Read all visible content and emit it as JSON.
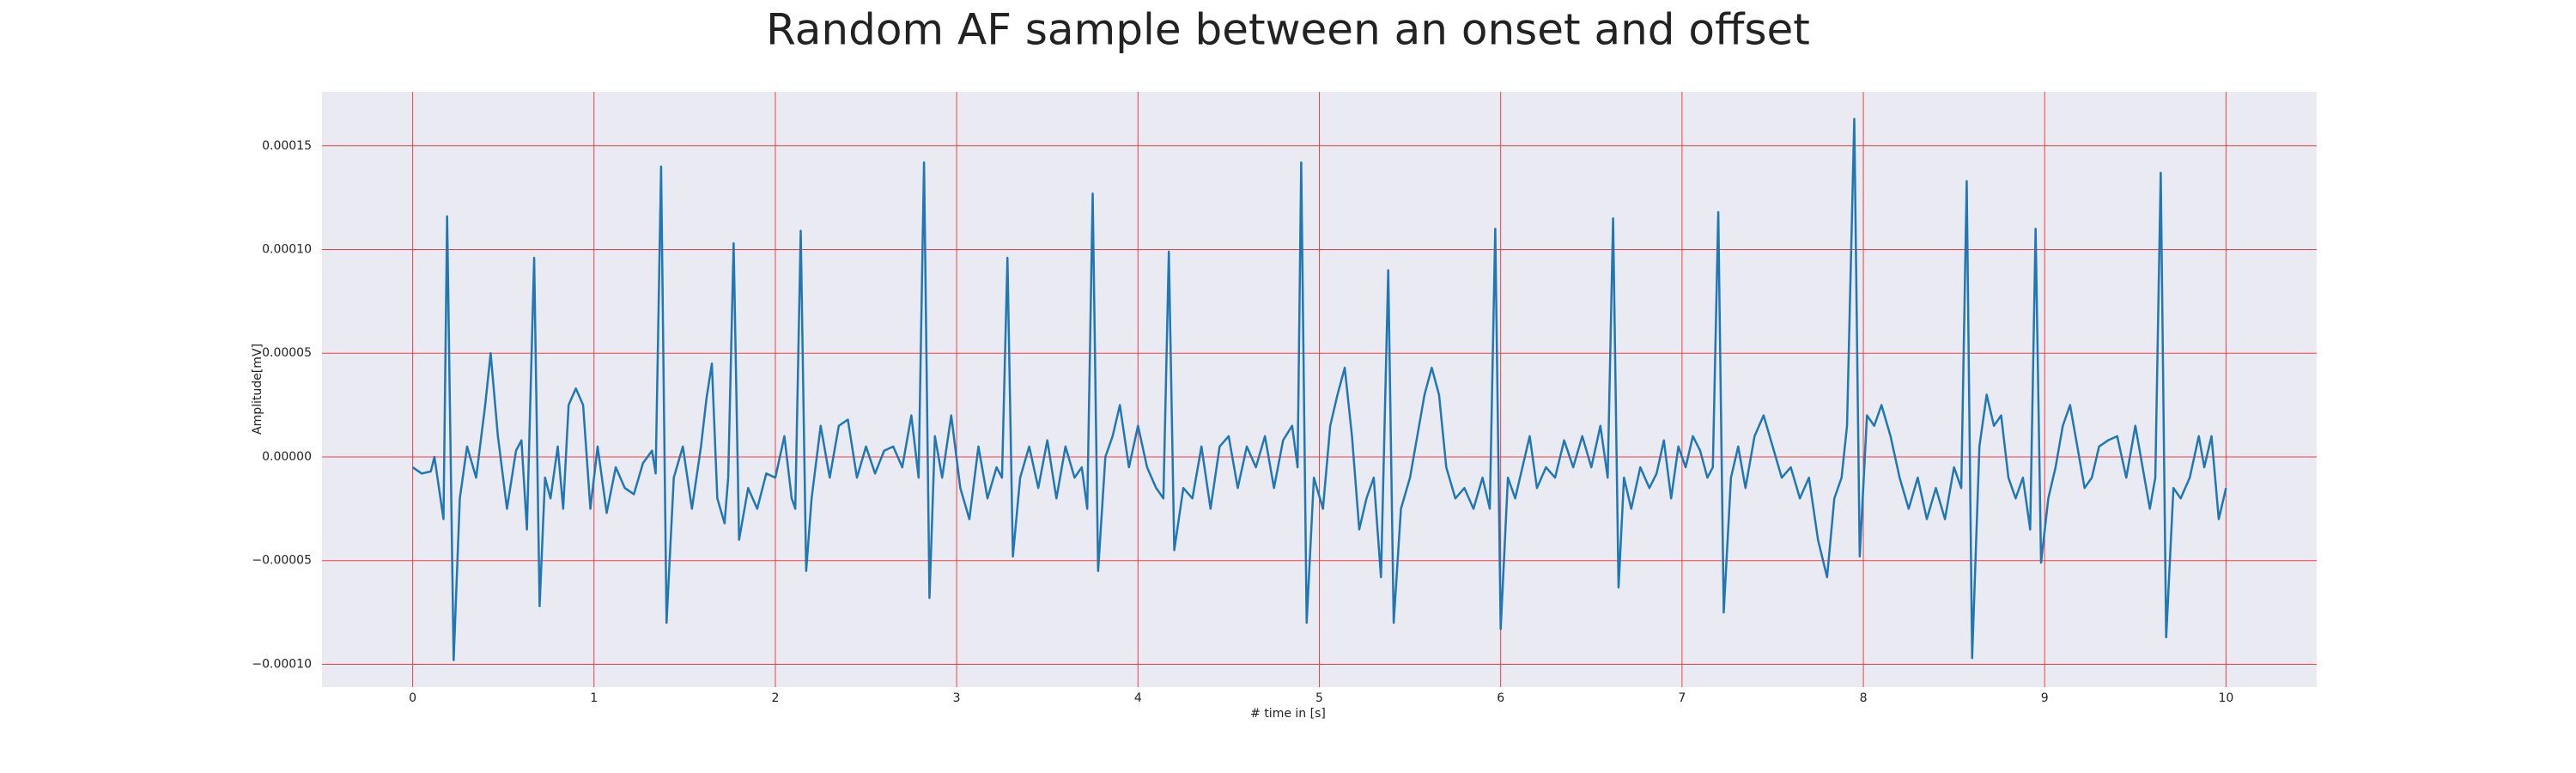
{
  "chart_data": {
    "type": "line",
    "title": "Random AF sample between an onset and offset",
    "xlabel": "# time in [s]",
    "ylabel": "Amplitude[mV]",
    "xlim": [
      -0.5,
      10.5
    ],
    "ylim": [
      -0.000111,
      0.000176
    ],
    "xticks": [
      0,
      1,
      2,
      3,
      4,
      5,
      6,
      7,
      8,
      9,
      10
    ],
    "yticks": [
      {
        "value": -0.0001,
        "label": "−0.00010"
      },
      {
        "value": -5e-05,
        "label": "−0.00005"
      },
      {
        "value": 0,
        "label": "0.00000"
      },
      {
        "value": 5e-05,
        "label": "0.00005"
      },
      {
        "value": 0.0001,
        "label": "0.00010"
      },
      {
        "value": 0.00015,
        "label": "0.00015"
      }
    ],
    "grid": true,
    "grid_color": "#f04040",
    "background": "#eaeaf2",
    "series": [
      {
        "color": "#1f77b4",
        "x": [
          0.0,
          0.05,
          0.1,
          0.12,
          0.15,
          0.17,
          0.19,
          0.226,
          0.26,
          0.3,
          0.35,
          0.4,
          0.43,
          0.47,
          0.52,
          0.57,
          0.6,
          0.63,
          0.67,
          0.7,
          0.73,
          0.76,
          0.8,
          0.83,
          0.86,
          0.9,
          0.94,
          0.98,
          1.02,
          1.07,
          1.12,
          1.17,
          1.22,
          1.27,
          1.32,
          1.34,
          1.37,
          1.4,
          1.44,
          1.49,
          1.54,
          1.59,
          1.62,
          1.65,
          1.68,
          1.72,
          1.74,
          1.77,
          1.8,
          1.85,
          1.9,
          1.95,
          2.0,
          2.05,
          2.09,
          2.11,
          2.14,
          2.17,
          2.2,
          2.25,
          2.3,
          2.35,
          2.4,
          2.45,
          2.5,
          2.55,
          2.6,
          2.65,
          2.7,
          2.75,
          2.79,
          2.82,
          2.85,
          2.88,
          2.92,
          2.97,
          3.02,
          3.07,
          3.12,
          3.17,
          3.22,
          3.25,
          3.28,
          3.31,
          3.35,
          3.4,
          3.45,
          3.5,
          3.55,
          3.6,
          3.65,
          3.69,
          3.72,
          3.75,
          3.78,
          3.82,
          3.86,
          3.9,
          3.95,
          4.0,
          4.05,
          4.1,
          4.14,
          4.17,
          4.2,
          4.25,
          4.3,
          4.35,
          4.4,
          4.45,
          4.5,
          4.55,
          4.6,
          4.65,
          4.7,
          4.75,
          4.8,
          4.85,
          4.88,
          4.9,
          4.93,
          4.97,
          5.02,
          5.06,
          5.1,
          5.14,
          5.18,
          5.22,
          5.26,
          5.3,
          5.34,
          5.38,
          5.41,
          5.45,
          5.5,
          5.54,
          5.58,
          5.62,
          5.66,
          5.7,
          5.75,
          5.8,
          5.85,
          5.9,
          5.94,
          5.97,
          6.0,
          6.04,
          6.08,
          6.12,
          6.16,
          6.2,
          6.25,
          6.3,
          6.35,
          6.4,
          6.45,
          6.5,
          6.55,
          6.59,
          6.62,
          6.65,
          6.68,
          6.72,
          6.77,
          6.82,
          6.86,
          6.9,
          6.94,
          6.98,
          7.02,
          7.06,
          7.1,
          7.14,
          7.17,
          7.2,
          7.23,
          7.27,
          7.31,
          7.35,
          7.4,
          7.45,
          7.5,
          7.55,
          7.6,
          7.65,
          7.7,
          7.75,
          7.8,
          7.84,
          7.88,
          7.91,
          7.95,
          7.98,
          8.02,
          8.06,
          8.1,
          8.15,
          8.2,
          8.25,
          8.3,
          8.35,
          8.4,
          8.45,
          8.5,
          8.54,
          8.57,
          8.6,
          8.64,
          8.68,
          8.72,
          8.76,
          8.8,
          8.84,
          8.88,
          8.92,
          8.95,
          8.98,
          9.02,
          9.06,
          9.1,
          9.14,
          9.18,
          9.22,
          9.26,
          9.3,
          9.35,
          9.4,
          9.45,
          9.5,
          9.55,
          9.58,
          9.61,
          9.64,
          9.67,
          9.71,
          9.75,
          9.8,
          9.85,
          9.88,
          9.92,
          9.96,
          10.0
        ],
        "values": [
          -5e-06,
          -8e-06,
          -7e-06,
          0.0,
          -1.8e-05,
          -3e-05,
          0.000116,
          -9.8e-05,
          -2e-05,
          5e-06,
          -1e-05,
          2.5e-05,
          5e-05,
          1e-05,
          -2.5e-05,
          3e-06,
          8e-06,
          -3.5e-05,
          9.6e-05,
          -7.2e-05,
          -1e-05,
          -2e-05,
          5e-06,
          -2.5e-05,
          2.5e-05,
          3.3e-05,
          2.5e-05,
          -2.5e-05,
          5e-06,
          -2.7e-05,
          -5e-06,
          -1.5e-05,
          -1.8e-05,
          -3e-06,
          3e-06,
          -8e-06,
          0.00014,
          -8e-05,
          -1e-05,
          5e-06,
          -2.5e-05,
          5e-06,
          2.8e-05,
          4.5e-05,
          -2e-05,
          -3.2e-05,
          -1e-05,
          0.000103,
          -4e-05,
          -1.5e-05,
          -2.5e-05,
          -8e-06,
          -1e-05,
          1e-05,
          -2e-05,
          -2.5e-05,
          0.000109,
          -5.5e-05,
          -2e-05,
          1.5e-05,
          -1e-05,
          1.5e-05,
          1.8e-05,
          -1e-05,
          5e-06,
          -8e-06,
          3e-06,
          5e-06,
          -5e-06,
          2e-05,
          -1e-05,
          0.000142,
          -6.8e-05,
          1e-05,
          -1e-05,
          2e-05,
          -1.5e-05,
          -3e-05,
          5e-06,
          -2e-05,
          -5e-06,
          -1e-05,
          9.6e-05,
          -4.8e-05,
          -1e-05,
          5e-06,
          -1.5e-05,
          8e-06,
          -2e-05,
          5e-06,
          -1e-05,
          -5e-06,
          -2.5e-05,
          0.000127,
          -5.5e-05,
          0.0,
          1e-05,
          2.5e-05,
          -5e-06,
          1.5e-05,
          -5e-06,
          -1.5e-05,
          -2e-05,
          9.9e-05,
          -4.5e-05,
          -1.5e-05,
          -2e-05,
          5e-06,
          -2.5e-05,
          5e-06,
          1e-05,
          -1.5e-05,
          5e-06,
          -5e-06,
          1e-05,
          -1.5e-05,
          8e-06,
          1.5e-05,
          -5e-06,
          0.000142,
          -8e-05,
          -1e-05,
          -2.5e-05,
          1.5e-05,
          3e-05,
          4.3e-05,
          1e-05,
          -3.5e-05,
          -2e-05,
          -1e-05,
          -5.8e-05,
          9e-05,
          -8e-05,
          -2.5e-05,
          -1e-05,
          1e-05,
          3e-05,
          4.3e-05,
          3e-05,
          -5e-06,
          -2e-05,
          -1.5e-05,
          -2.5e-05,
          -1e-05,
          -2.5e-05,
          0.00011,
          -8.3e-05,
          -1e-05,
          -2e-05,
          -5e-06,
          1e-05,
          -1.5e-05,
          -5e-06,
          -1e-05,
          8e-06,
          -5e-06,
          1e-05,
          -5e-06,
          1.5e-05,
          -1e-05,
          0.000115,
          -6.3e-05,
          -1e-05,
          -2.5e-05,
          -5e-06,
          -1.5e-05,
          -8e-06,
          8e-06,
          -2e-05,
          5e-06,
          -5e-06,
          1e-05,
          3e-06,
          -1e-05,
          -5e-06,
          0.000118,
          -7.5e-05,
          -1e-05,
          5e-06,
          -1.5e-05,
          1e-05,
          2e-05,
          5e-06,
          -1e-05,
          -5e-06,
          -2e-05,
          -1e-05,
          -4e-05,
          -5.8e-05,
          -2e-05,
          -1e-05,
          1.5e-05,
          0.000163,
          -4.8e-05,
          2e-05,
          1.5e-05,
          2.5e-05,
          1e-05,
          -1e-05,
          -2.5e-05,
          -1e-05,
          -3e-05,
          -1.5e-05,
          -3e-05,
          -5e-06,
          -1.5e-05,
          0.000133,
          -9.7e-05,
          5e-06,
          3e-05,
          1.5e-05,
          2e-05,
          -1e-05,
          -2e-05,
          -1e-05,
          -3.5e-05,
          0.00011,
          -5.1e-05,
          -2e-05,
          -5e-06,
          1.5e-05,
          2.5e-05,
          5e-06,
          -1.5e-05,
          -1e-05,
          5e-06,
          8e-06,
          1e-05,
          -1e-05,
          1.5e-05,
          -1e-05,
          -2.5e-05,
          -1e-05,
          0.000137,
          -8.7e-05,
          -1.5e-05,
          -2e-05,
          -1e-05,
          1e-05,
          -5e-06,
          1e-05,
          -3e-05,
          -1.5e-05
        ]
      }
    ]
  }
}
